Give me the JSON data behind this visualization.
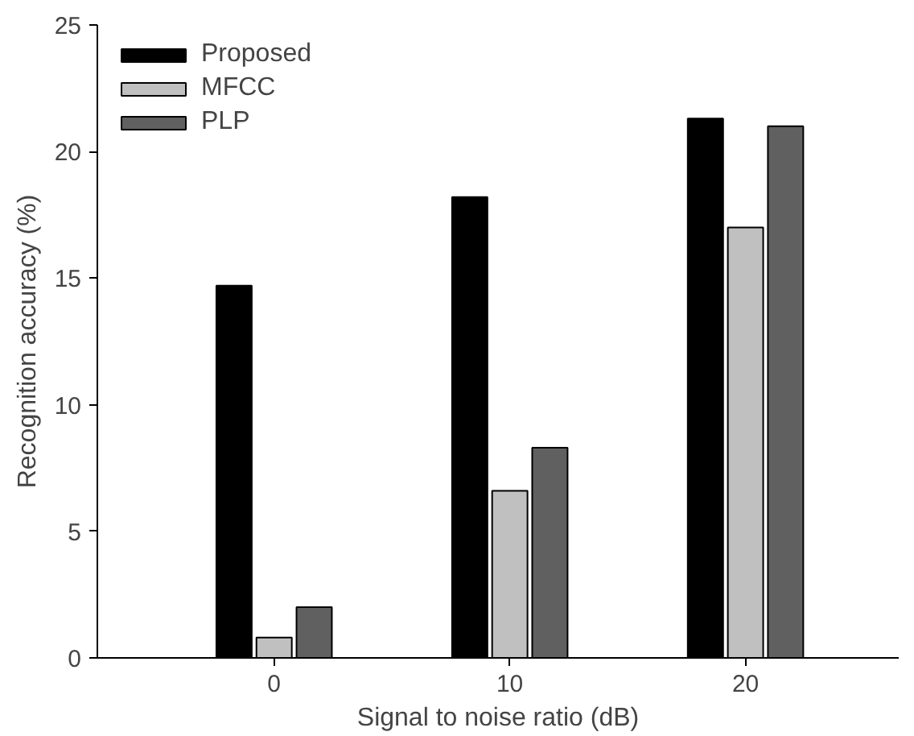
{
  "chart_data": {
    "type": "bar",
    "xlabel": "Signal to noise ratio (dB)",
    "ylabel": "Recognition accuracy (%)",
    "categories": [
      "0",
      "10",
      "20"
    ],
    "series": [
      {
        "name": "Proposed",
        "color": "#000000",
        "values": [
          14.7,
          18.2,
          21.3
        ]
      },
      {
        "name": "MFCC",
        "color": "#c0c0c0",
        "values": [
          0.8,
          6.6,
          17.0
        ]
      },
      {
        "name": "PLP",
        "color": "#606060",
        "values": [
          2.0,
          8.3,
          21.0
        ]
      }
    ],
    "ylim": [
      0,
      25
    ],
    "yticks": [
      0,
      5,
      10,
      15,
      20,
      25
    ],
    "grid": false,
    "legend": "top left"
  }
}
